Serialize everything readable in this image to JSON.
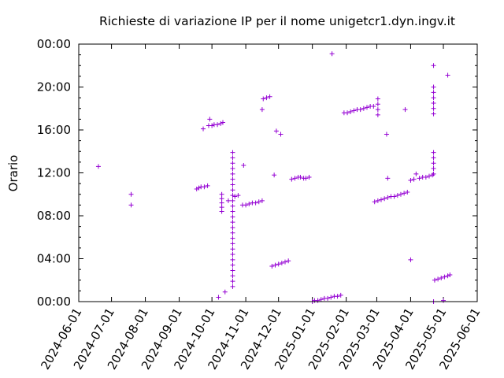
{
  "chart_data": {
    "type": "scatter",
    "title": "Richieste di variazione IP per il nome unigetcr1.dyn.ingv.it",
    "xlabel": "",
    "ylabel": "Orario",
    "xlim": [
      "2024-06-01",
      "2025-06-01"
    ],
    "ylim": [
      0,
      24
    ],
    "marker": "+",
    "color": "#9400d3",
    "grid": false,
    "x_ticks": [
      "2024-06-01",
      "2024-07-01",
      "2024-08-01",
      "2024-09-01",
      "2024-10-01",
      "2024-11-01",
      "2024-12-01",
      "2025-01-01",
      "2025-02-01",
      "2025-03-01",
      "2025-04-01",
      "2025-05-01",
      "2025-06-01"
    ],
    "y_ticks": [
      {
        "label": "00:00",
        "value": 0
      },
      {
        "label": "04:00",
        "value": 4
      },
      {
        "label": "08:00",
        "value": 8
      },
      {
        "label": "12:00",
        "value": 12
      },
      {
        "label": "16:00",
        "value": 16
      },
      {
        "label": "20:00",
        "value": 20
      },
      {
        "label": "00:00",
        "value": 24
      }
    ],
    "points": [
      [
        "2024-06-19",
        12.6
      ],
      [
        "2024-07-19",
        10.0
      ],
      [
        "2024-07-19",
        9.0
      ],
      [
        "2024-09-17",
        10.5
      ],
      [
        "2024-09-19",
        10.6
      ],
      [
        "2024-09-21",
        10.7
      ],
      [
        "2024-09-24",
        10.7
      ],
      [
        "2024-09-27",
        10.8
      ],
      [
        "2024-09-23",
        16.1
      ],
      [
        "2024-09-29",
        17.0
      ],
      [
        "2024-09-28",
        16.4
      ],
      [
        "2024-10-01",
        16.4
      ],
      [
        "2024-10-03",
        16.5
      ],
      [
        "2024-10-06",
        16.5
      ],
      [
        "2024-10-09",
        16.6
      ],
      [
        "2024-10-11",
        16.7
      ],
      [
        "2024-10-07",
        0.4
      ],
      [
        "2024-10-13",
        0.9
      ],
      [
        "2024-10-10",
        10.0
      ],
      [
        "2024-10-10",
        9.6
      ],
      [
        "2024-10-10",
        9.2
      ],
      [
        "2024-10-10",
        8.8
      ],
      [
        "2024-10-10",
        8.4
      ],
      [
        "2024-10-16",
        9.4
      ],
      [
        "2024-10-20",
        1.4
      ],
      [
        "2024-10-20",
        1.9
      ],
      [
        "2024-10-20",
        2.4
      ],
      [
        "2024-10-20",
        2.9
      ],
      [
        "2024-10-20",
        3.4
      ],
      [
        "2024-10-20",
        3.9
      ],
      [
        "2024-10-20",
        4.4
      ],
      [
        "2024-10-20",
        4.9
      ],
      [
        "2024-10-20",
        5.4
      ],
      [
        "2024-10-20",
        5.9
      ],
      [
        "2024-10-20",
        6.4
      ],
      [
        "2024-10-20",
        6.9
      ],
      [
        "2024-10-20",
        7.4
      ],
      [
        "2024-10-20",
        7.9
      ],
      [
        "2024-10-20",
        8.4
      ],
      [
        "2024-10-20",
        8.9
      ],
      [
        "2024-10-20",
        9.4
      ],
      [
        "2024-10-20",
        9.9
      ],
      [
        "2024-10-20",
        10.4
      ],
      [
        "2024-10-20",
        10.9
      ],
      [
        "2024-10-20",
        11.4
      ],
      [
        "2024-10-20",
        11.9
      ],
      [
        "2024-10-20",
        12.4
      ],
      [
        "2024-10-20",
        12.9
      ],
      [
        "2024-10-20",
        13.4
      ],
      [
        "2024-10-20",
        13.9
      ],
      [
        "2024-10-22",
        9.8
      ],
      [
        "2024-10-25",
        9.9
      ],
      [
        "2024-10-29",
        9.0
      ],
      [
        "2024-11-01",
        9.0
      ],
      [
        "2024-11-04",
        9.1
      ],
      [
        "2024-11-07",
        9.2
      ],
      [
        "2024-11-10",
        9.2
      ],
      [
        "2024-11-13",
        9.3
      ],
      [
        "2024-11-16",
        9.4
      ],
      [
        "2024-10-30",
        12.7
      ],
      [
        "2024-11-16",
        17.9
      ],
      [
        "2024-11-17",
        18.9
      ],
      [
        "2024-11-20",
        19.0
      ],
      [
        "2024-11-23",
        19.1
      ],
      [
        "2024-11-25",
        3.3
      ],
      [
        "2024-11-28",
        3.4
      ],
      [
        "2024-12-01",
        3.5
      ],
      [
        "2024-12-04",
        3.6
      ],
      [
        "2024-12-07",
        3.7
      ],
      [
        "2024-12-10",
        3.8
      ],
      [
        "2024-11-27",
        11.8
      ],
      [
        "2024-11-29",
        15.9
      ],
      [
        "2024-12-03",
        15.6
      ],
      [
        "2024-12-13",
        11.4
      ],
      [
        "2024-12-16",
        11.5
      ],
      [
        "2024-12-19",
        11.6
      ],
      [
        "2024-12-21",
        11.6
      ],
      [
        "2024-12-24",
        11.5
      ],
      [
        "2024-12-26",
        11.5
      ],
      [
        "2024-12-29",
        11.6
      ],
      [
        "2025-01-01",
        0.0
      ],
      [
        "2025-01-03",
        0.1
      ],
      [
        "2025-01-06",
        0.1
      ],
      [
        "2025-01-09",
        0.2
      ],
      [
        "2025-01-12",
        0.3
      ],
      [
        "2025-01-15",
        0.3
      ],
      [
        "2025-01-18",
        0.4
      ],
      [
        "2025-01-21",
        0.5
      ],
      [
        "2025-01-24",
        0.5
      ],
      [
        "2025-01-27",
        0.6
      ],
      [
        "2025-01-19",
        23.1
      ],
      [
        "2025-01-30",
        17.6
      ],
      [
        "2025-02-02",
        17.6
      ],
      [
        "2025-02-05",
        17.7
      ],
      [
        "2025-02-08",
        17.8
      ],
      [
        "2025-02-11",
        17.9
      ],
      [
        "2025-02-14",
        17.9
      ],
      [
        "2025-02-17",
        18.0
      ],
      [
        "2025-02-20",
        18.1
      ],
      [
        "2025-02-23",
        18.2
      ],
      [
        "2025-02-26",
        18.2
      ],
      [
        "2025-03-02",
        18.9
      ],
      [
        "2025-03-02",
        18.4
      ],
      [
        "2025-03-02",
        17.9
      ],
      [
        "2025-03-02",
        17.4
      ],
      [
        "2025-02-27",
        9.3
      ],
      [
        "2025-03-02",
        9.4
      ],
      [
        "2025-03-05",
        9.5
      ],
      [
        "2025-03-08",
        9.6
      ],
      [
        "2025-03-11",
        9.7
      ],
      [
        "2025-03-14",
        9.8
      ],
      [
        "2025-03-17",
        9.8
      ],
      [
        "2025-03-20",
        9.9
      ],
      [
        "2025-03-23",
        10.0
      ],
      [
        "2025-03-26",
        10.1
      ],
      [
        "2025-03-29",
        10.2
      ],
      [
        "2025-03-10",
        15.6
      ],
      [
        "2025-03-11",
        11.5
      ],
      [
        "2025-03-27",
        17.9
      ],
      [
        "2025-04-01",
        3.9
      ],
      [
        "2025-04-01",
        11.3
      ],
      [
        "2025-04-04",
        11.4
      ],
      [
        "2025-04-06",
        11.9
      ],
      [
        "2025-04-09",
        11.5
      ],
      [
        "2025-04-12",
        11.6
      ],
      [
        "2025-04-15",
        11.6
      ],
      [
        "2025-04-18",
        11.7
      ],
      [
        "2025-04-21",
        11.8
      ],
      [
        "2025-04-22",
        11.9
      ],
      [
        "2025-04-22",
        12.4
      ],
      [
        "2025-04-22",
        12.9
      ],
      [
        "2025-04-22",
        13.4
      ],
      [
        "2025-04-22",
        13.9
      ],
      [
        "2025-04-22",
        17.5
      ],
      [
        "2025-04-22",
        18.0
      ],
      [
        "2025-04-22",
        18.5
      ],
      [
        "2025-04-22",
        19.0
      ],
      [
        "2025-04-22",
        19.5
      ],
      [
        "2025-04-22",
        20.0
      ],
      [
        "2025-04-22",
        22.0
      ],
      [
        "2025-04-22",
        0.0
      ],
      [
        "2025-04-23",
        2.0
      ],
      [
        "2025-04-26",
        2.1
      ],
      [
        "2025-04-29",
        2.2
      ],
      [
        "2025-05-02",
        2.3
      ],
      [
        "2025-05-05",
        2.4
      ],
      [
        "2025-05-07",
        2.5
      ],
      [
        "2025-05-01",
        0.1
      ],
      [
        "2025-05-05",
        21.1
      ]
    ]
  }
}
